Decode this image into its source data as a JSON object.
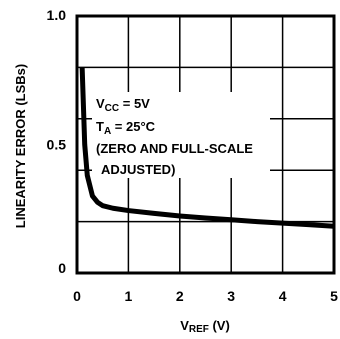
{
  "chart_data": {
    "type": "line",
    "x": [
      0.1,
      0.15,
      0.2,
      0.3,
      0.4,
      0.5,
      0.7,
      1.0,
      1.5,
      2.0,
      2.5,
      3.0,
      3.5,
      4.0,
      4.5,
      5.0
    ],
    "series": [
      {
        "values": [
          0.8,
          0.5,
          0.38,
          0.3,
          0.275,
          0.262,
          0.252,
          0.243,
          0.232,
          0.222,
          0.214,
          0.207,
          0.2,
          0.194,
          0.188,
          0.182
        ]
      }
    ],
    "xlim": [
      0,
      5
    ],
    "ylim": [
      0,
      1.0
    ],
    "x_ticks": [
      "0",
      "1",
      "2",
      "3",
      "4",
      "5"
    ],
    "y_ticks": [
      "0",
      "0.5",
      "1.0"
    ],
    "xlabel_main": "V",
    "xlabel_sub": "REF",
    "xlabel_unit": " (V)",
    "ylabel": "LINEARITY ERROR (LSBs)",
    "grid": true,
    "annotations": {
      "vcc_main": "V",
      "vcc_sub": "CC",
      "vcc_value": " = 5V",
      "ta_main": "T",
      "ta_sub": "A",
      "ta_value": " = 25°C",
      "note_line1": "(ZERO AND FULL-SCALE",
      "note_line2": "ADJUSTED)"
    },
    "line_color": "#000000"
  }
}
